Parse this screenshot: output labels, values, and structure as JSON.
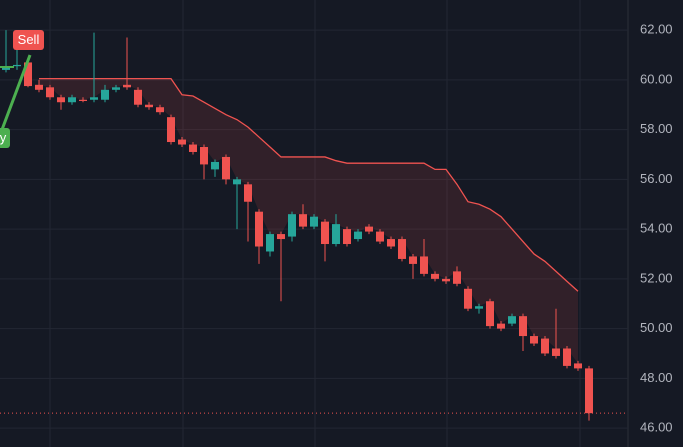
{
  "chart_data": {
    "type": "candlestick",
    "series": [
      {
        "name": "price",
        "open": [
          60.4,
          60.55,
          60.7,
          59.8,
          59.7,
          59.3,
          59.1,
          59.2,
          59.2,
          59.2,
          59.6,
          59.8,
          59.6,
          59.0,
          58.9,
          58.5,
          57.6,
          57.4,
          57.3,
          56.4,
          56.9,
          55.8,
          55.8,
          54.7,
          53.1,
          53.8,
          53.7,
          54.6,
          54.1,
          54.3,
          53.4,
          54.0,
          53.6,
          54.1,
          53.9,
          53.6,
          53.6,
          52.9,
          52.9,
          52.2,
          52.0,
          52.3,
          51.6,
          50.8,
          51.1,
          50.2,
          50.2,
          50.5,
          49.7,
          49.6,
          49.2,
          49.2,
          48.6,
          48.4
        ],
        "high": [
          62.0,
          61.8,
          60.8,
          60.0,
          59.8,
          59.4,
          59.4,
          59.3,
          61.9,
          59.8,
          59.8,
          61.7,
          59.7,
          59.1,
          59.0,
          58.6,
          57.7,
          57.5,
          57.4,
          56.8,
          57.0,
          56.1,
          55.9,
          54.8,
          53.9,
          53.9,
          54.7,
          55.0,
          54.6,
          54.4,
          54.6,
          54.1,
          54.0,
          54.2,
          54.0,
          53.7,
          53.7,
          53.0,
          53.6,
          52.3,
          52.1,
          52.5,
          51.7,
          51.0,
          51.2,
          50.3,
          50.6,
          50.6,
          49.8,
          49.7,
          50.8,
          49.3,
          48.7,
          48.5
        ],
        "low": [
          60.3,
          60.4,
          59.7,
          59.5,
          59.2,
          58.8,
          59.0,
          59.1,
          59.1,
          59.1,
          59.5,
          59.6,
          58.9,
          58.8,
          58.6,
          57.4,
          57.3,
          57.0,
          56.0,
          56.1,
          55.8,
          54.0,
          53.5,
          52.6,
          52.9,
          51.1,
          53.5,
          54.0,
          54.0,
          52.7,
          53.3,
          53.3,
          53.5,
          53.8,
          53.4,
          53.2,
          52.7,
          52.0,
          52.1,
          51.9,
          51.8,
          51.7,
          50.7,
          50.6,
          50.0,
          49.9,
          50.1,
          49.1,
          49.3,
          48.9,
          48.8,
          48.4,
          48.3,
          46.3
        ],
        "close": [
          60.5,
          60.6,
          59.75,
          59.6,
          59.3,
          59.1,
          59.3,
          59.15,
          59.3,
          59.6,
          59.7,
          59.7,
          59.0,
          58.9,
          58.7,
          57.5,
          57.4,
          57.1,
          56.6,
          56.7,
          56.0,
          56.0,
          55.1,
          53.3,
          53.8,
          53.6,
          54.6,
          54.1,
          54.5,
          53.4,
          54.2,
          53.4,
          53.9,
          53.9,
          53.5,
          53.3,
          52.8,
          52.6,
          52.2,
          52.0,
          51.9,
          51.8,
          50.8,
          50.9,
          50.1,
          50.0,
          50.5,
          49.7,
          49.4,
          49.0,
          48.9,
          48.5,
          48.4,
          46.6
        ],
        "up_color": "#26a69a",
        "down_color": "#ef5350"
      },
      {
        "name": "stop",
        "color": "#ef5350",
        "values": [
          null,
          null,
          null,
          60.05,
          60.05,
          60.05,
          60.05,
          60.05,
          60.05,
          60.05,
          60.05,
          60.05,
          60.05,
          60.05,
          60.05,
          60.05,
          59.4,
          59.35,
          59.1,
          58.85,
          58.6,
          58.4,
          58.1,
          57.7,
          57.3,
          56.9,
          56.9,
          56.9,
          56.9,
          56.9,
          56.75,
          56.65,
          56.65,
          56.65,
          56.65,
          56.65,
          56.65,
          56.65,
          56.65,
          56.4,
          56.4,
          55.8,
          55.1,
          55.0,
          54.8,
          54.5,
          54.0,
          53.5,
          53.0,
          52.7,
          52.3,
          51.9,
          51.5,
          null
        ]
      }
    ],
    "price_line": 46.6,
    "annotations": [
      "Sell",
      "y"
    ],
    "ylim": [
      45.24,
      63.21
    ],
    "yticks": [
      {
        "value": 46,
        "label": "46.00"
      },
      {
        "value": 48,
        "label": "48.00"
      },
      {
        "value": 50,
        "label": "50.00"
      },
      {
        "value": 52,
        "label": "52.00"
      },
      {
        "value": 54,
        "label": "54.00"
      },
      {
        "value": 56,
        "label": "56.00"
      },
      {
        "value": 58,
        "label": "58.00"
      },
      {
        "value": 60,
        "label": "60.00"
      },
      {
        "value": 62,
        "label": "62.00"
      }
    ],
    "grid": true
  }
}
